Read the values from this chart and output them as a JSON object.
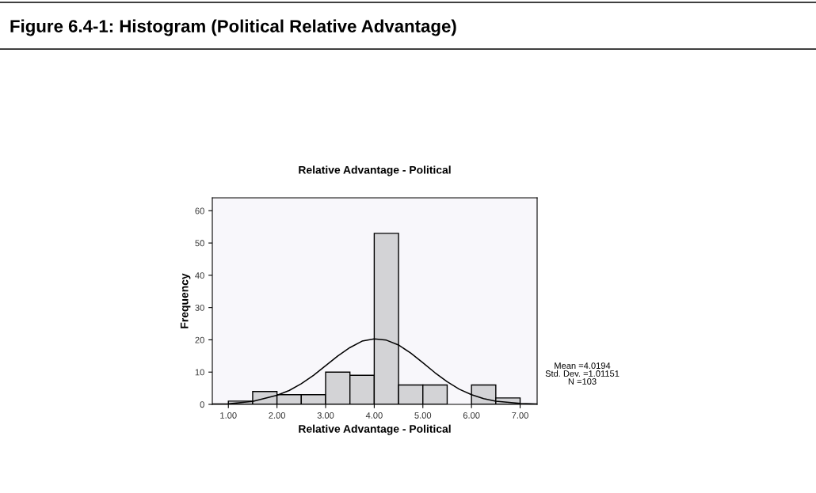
{
  "chart_data": {
    "type": "histogram",
    "title": "Relative Advantage - Political",
    "xlabel": "Relative Advantage - Political",
    "ylabel": "Frequency",
    "bins": [
      1.0,
      1.5,
      2.0,
      2.5,
      3.0,
      3.5,
      4.0,
      4.5,
      5.0,
      5.5,
      6.0,
      6.5,
      7.0
    ],
    "values": [
      1,
      4,
      3,
      3,
      10,
      9,
      53,
      6,
      6,
      0,
      6,
      2
    ],
    "color": "#d3d3d6",
    "series": [
      {
        "type": "line",
        "color": "#000000",
        "x": [
          0.67,
          1.0,
          1.5,
          2.0,
          2.25,
          2.5,
          2.75,
          3.0,
          3.25,
          3.5,
          3.75,
          4.0,
          4.25,
          4.5,
          4.75,
          5.0,
          5.25,
          5.5,
          5.75,
          6.0,
          6.25,
          6.5,
          7.0,
          7.35
        ],
        "values": [
          0.1,
          0.2,
          0.9,
          2.8,
          4.3,
          6.4,
          9.0,
          12.0,
          15.0,
          17.6,
          19.6,
          20.3,
          19.9,
          18.4,
          15.9,
          12.9,
          9.8,
          7.0,
          4.7,
          3.0,
          1.8,
          1.0,
          0.3,
          0.1
        ]
      }
    ],
    "xlim": [
      0.67,
      7.35
    ],
    "ylim": [
      0,
      64
    ],
    "xticks": [
      {
        "value": 1,
        "label": "1.00"
      },
      {
        "value": 2,
        "label": "2.00"
      },
      {
        "value": 3,
        "label": "3.00"
      },
      {
        "value": 4,
        "label": "4.00"
      },
      {
        "value": 5,
        "label": "5.00"
      },
      {
        "value": 6,
        "label": "6.00"
      },
      {
        "value": 7,
        "label": "7.00"
      }
    ],
    "yticks": [
      0,
      10,
      20,
      30,
      40,
      50,
      60
    ],
    "annotations": [
      "Figure 6.4-1: Histogram (Political Relative Advantage)",
      "Mean =4.0194\nStd. Dev. =1.01151\nN =103"
    ]
  }
}
